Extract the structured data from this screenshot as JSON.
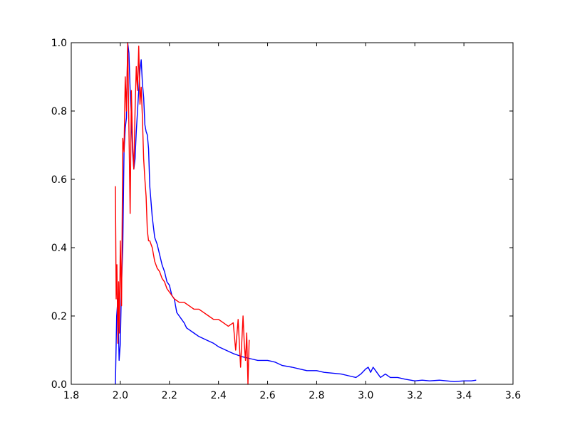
{
  "chart_data": {
    "type": "line",
    "title": "",
    "xlabel": "",
    "ylabel": "",
    "xlim": [
      1.8,
      3.6
    ],
    "ylim": [
      0.0,
      1.0
    ],
    "xticks": [
      1.8,
      2.0,
      2.2,
      2.4,
      2.6,
      2.8,
      3.0,
      3.2,
      3.4,
      3.6
    ],
    "yticks": [
      0.0,
      0.2,
      0.4,
      0.6,
      0.8,
      1.0
    ],
    "xtick_labels": [
      "1.8",
      "2.0",
      "2.2",
      "2.4",
      "2.6",
      "2.8",
      "3.0",
      "3.2",
      "3.4",
      "3.6"
    ],
    "ytick_labels": [
      "0.0",
      "0.2",
      "0.4",
      "0.6",
      "0.8",
      "1.0"
    ],
    "grid": false,
    "legend": "none",
    "series": [
      {
        "color": "#0000ff",
        "x": [
          1.98,
          1.985,
          1.99,
          1.995,
          2.0,
          2.005,
          2.01,
          2.015,
          2.02,
          2.025,
          2.03,
          2.035,
          2.04,
          2.045,
          2.05,
          2.055,
          2.06,
          2.065,
          2.07,
          2.075,
          2.08,
          2.085,
          2.09,
          2.095,
          2.1,
          2.105,
          2.11,
          2.115,
          2.12,
          2.13,
          2.14,
          2.15,
          2.16,
          2.17,
          2.18,
          2.19,
          2.2,
          2.21,
          2.22,
          2.23,
          2.24,
          2.25,
          2.26,
          2.27,
          2.28,
          2.3,
          2.32,
          2.35,
          2.38,
          2.4,
          2.43,
          2.46,
          2.5,
          2.53,
          2.56,
          2.6,
          2.63,
          2.66,
          2.7,
          2.73,
          2.76,
          2.8,
          2.83,
          2.86,
          2.9,
          2.93,
          2.96,
          2.98,
          3.0,
          3.01,
          3.02,
          3.03,
          3.04,
          3.06,
          3.08,
          3.1,
          3.13,
          3.16,
          3.2,
          3.23,
          3.26,
          3.3,
          3.33,
          3.36,
          3.4,
          3.43,
          3.45
        ],
        "y": [
          0.0,
          0.2,
          0.25,
          0.07,
          0.12,
          0.3,
          0.4,
          0.68,
          0.75,
          0.78,
          1.0,
          0.97,
          0.86,
          0.79,
          0.68,
          0.63,
          0.66,
          0.74,
          0.8,
          0.86,
          0.92,
          0.95,
          0.88,
          0.84,
          0.76,
          0.74,
          0.73,
          0.69,
          0.58,
          0.49,
          0.43,
          0.41,
          0.38,
          0.35,
          0.33,
          0.3,
          0.29,
          0.26,
          0.25,
          0.21,
          0.2,
          0.19,
          0.18,
          0.165,
          0.16,
          0.15,
          0.14,
          0.13,
          0.12,
          0.11,
          0.1,
          0.09,
          0.08,
          0.075,
          0.07,
          0.07,
          0.065,
          0.055,
          0.05,
          0.045,
          0.04,
          0.04,
          0.035,
          0.033,
          0.03,
          0.025,
          0.02,
          0.03,
          0.045,
          0.05,
          0.035,
          0.05,
          0.04,
          0.02,
          0.03,
          0.02,
          0.02,
          0.015,
          0.01,
          0.012,
          0.01,
          0.012,
          0.01,
          0.008,
          0.01,
          0.01,
          0.012
        ]
      },
      {
        "color": "#ff0000",
        "x": [
          1.98,
          1.983,
          1.986,
          1.99,
          1.993,
          1.996,
          2.0,
          2.005,
          2.01,
          2.015,
          2.02,
          2.025,
          2.03,
          2.035,
          2.04,
          2.045,
          2.05,
          2.055,
          2.06,
          2.065,
          2.07,
          2.075,
          2.08,
          2.085,
          2.09,
          2.095,
          2.1,
          2.105,
          2.11,
          2.115,
          2.12,
          2.13,
          2.14,
          2.15,
          2.16,
          2.17,
          2.18,
          2.19,
          2.2,
          2.22,
          2.24,
          2.26,
          2.28,
          2.3,
          2.32,
          2.34,
          2.36,
          2.38,
          2.4,
          2.42,
          2.44,
          2.46,
          2.47,
          2.48,
          2.49,
          2.5,
          2.505,
          2.51,
          2.515,
          2.52,
          2.525
        ],
        "y": [
          0.58,
          0.25,
          0.35,
          0.12,
          0.3,
          0.15,
          0.42,
          0.23,
          0.72,
          0.68,
          0.9,
          0.8,
          1.0,
          0.75,
          0.5,
          0.86,
          0.7,
          0.63,
          0.8,
          0.93,
          0.86,
          0.99,
          0.82,
          0.87,
          0.78,
          0.66,
          0.6,
          0.55,
          0.45,
          0.42,
          0.42,
          0.4,
          0.36,
          0.34,
          0.33,
          0.31,
          0.3,
          0.28,
          0.27,
          0.25,
          0.24,
          0.24,
          0.23,
          0.22,
          0.22,
          0.21,
          0.2,
          0.19,
          0.19,
          0.18,
          0.17,
          0.18,
          0.1,
          0.19,
          0.05,
          0.2,
          0.12,
          0.07,
          0.15,
          0.0,
          0.13
        ]
      }
    ]
  }
}
